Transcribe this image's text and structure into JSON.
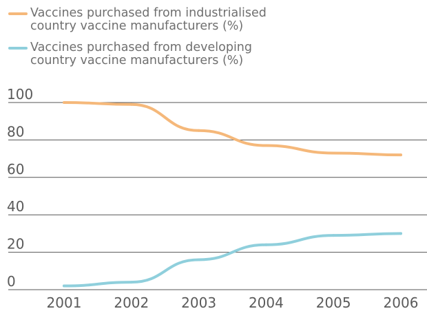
{
  "chart_data": {
    "type": "line",
    "title": "",
    "xlabel": "",
    "ylabel": "",
    "x": [
      2001,
      2002,
      2003,
      2004,
      2005,
      2006
    ],
    "x_tick_labels": [
      "2001",
      "2002",
      "2003",
      "2004",
      "2005",
      "2006"
    ],
    "ylim": [
      0,
      100
    ],
    "y_ticks": [
      0,
      20,
      40,
      60,
      80,
      100
    ],
    "y_tick_labels": [
      "0",
      "20",
      "40",
      "60",
      "80",
      "100"
    ],
    "grid": "horizontal",
    "legend_position": "top-left",
    "series": [
      {
        "name": "Vaccines purchased from industrialised\ncountry vaccine manufacturers (%)",
        "color": "#f5b87a",
        "values": [
          100,
          99,
          85,
          77,
          73,
          72
        ]
      },
      {
        "name": "Vaccines purchased from developing\ncountry vaccine manufacturers (%)",
        "color": "#8fcfdc",
        "values": [
          2,
          4,
          16,
          24,
          29,
          30
        ]
      }
    ]
  }
}
